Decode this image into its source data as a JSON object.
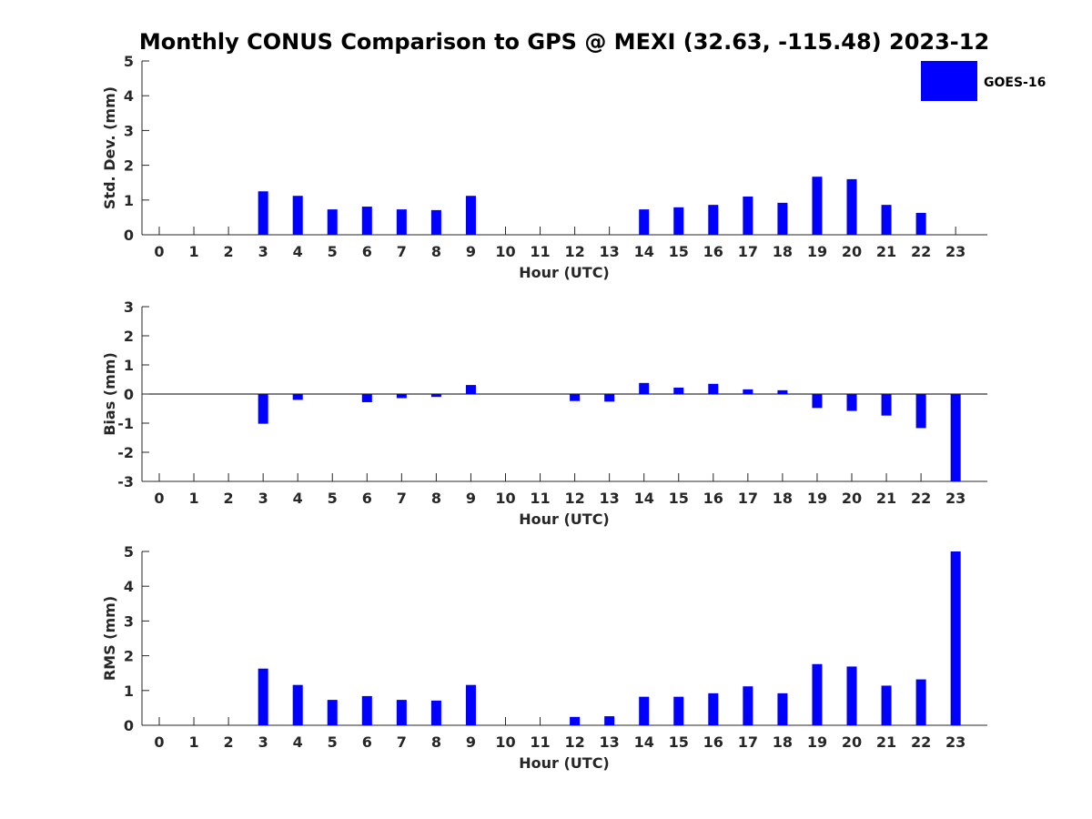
{
  "title": "Monthly CONUS Comparison to GPS @ MEXI (32.63, -115.48) 2023-12",
  "legend": {
    "label": "GOES-16",
    "color": "#0000ff",
    "placement": "top-right"
  },
  "bar_color": "#0000ff",
  "chart_data": [
    {
      "type": "bar",
      "xlabel": "Hour (UTC)",
      "ylabel": "Std. Dev. (mm)",
      "ylim": [
        0,
        5
      ],
      "yticks": [
        0,
        1,
        2,
        3,
        4,
        5
      ],
      "categories": [
        "0",
        "1",
        "2",
        "3",
        "4",
        "5",
        "6",
        "7",
        "8",
        "9",
        "10",
        "11",
        "12",
        "13",
        "14",
        "15",
        "16",
        "17",
        "18",
        "19",
        "20",
        "21",
        "22",
        "23"
      ],
      "series": [
        {
          "name": "GOES-16",
          "values": [
            null,
            null,
            null,
            1.25,
            1.12,
            0.73,
            0.81,
            0.73,
            0.71,
            1.12,
            null,
            null,
            0.0,
            0.0,
            0.73,
            0.79,
            0.86,
            1.1,
            0.92,
            1.67,
            1.6,
            0.86,
            0.63,
            null
          ]
        }
      ],
      "grid": false
    },
    {
      "type": "bar",
      "xlabel": "Hour (UTC)",
      "ylabel": "Bias (mm)",
      "ylim": [
        -3,
        3
      ],
      "yticks": [
        -3,
        -2,
        -1,
        0,
        1,
        2,
        3
      ],
      "categories": [
        "0",
        "1",
        "2",
        "3",
        "4",
        "5",
        "6",
        "7",
        "8",
        "9",
        "10",
        "11",
        "12",
        "13",
        "14",
        "15",
        "16",
        "17",
        "18",
        "19",
        "20",
        "21",
        "22",
        "23"
      ],
      "series": [
        {
          "name": "GOES-16",
          "values": [
            null,
            null,
            null,
            -1.02,
            -0.2,
            0.0,
            -0.28,
            -0.14,
            -0.1,
            0.31,
            null,
            null,
            -0.24,
            -0.26,
            0.38,
            0.22,
            0.35,
            0.16,
            0.13,
            -0.48,
            -0.58,
            -0.74,
            -1.17,
            -3.0
          ]
        }
      ],
      "zero_line": true,
      "grid": false
    },
    {
      "type": "bar",
      "xlabel": "Hour (UTC)",
      "ylabel": "RMS (mm)",
      "ylim": [
        0,
        5
      ],
      "yticks": [
        0,
        1,
        2,
        3,
        4,
        5
      ],
      "categories": [
        "0",
        "1",
        "2",
        "3",
        "4",
        "5",
        "6",
        "7",
        "8",
        "9",
        "10",
        "11",
        "12",
        "13",
        "14",
        "15",
        "16",
        "17",
        "18",
        "19",
        "20",
        "21",
        "22",
        "23"
      ],
      "series": [
        {
          "name": "GOES-16",
          "values": [
            null,
            null,
            null,
            1.63,
            1.16,
            0.73,
            0.84,
            0.73,
            0.71,
            1.16,
            null,
            null,
            0.24,
            0.26,
            0.82,
            0.82,
            0.92,
            1.12,
            0.92,
            1.76,
            1.69,
            1.14,
            1.32,
            5.0
          ]
        }
      ],
      "grid": false
    }
  ]
}
